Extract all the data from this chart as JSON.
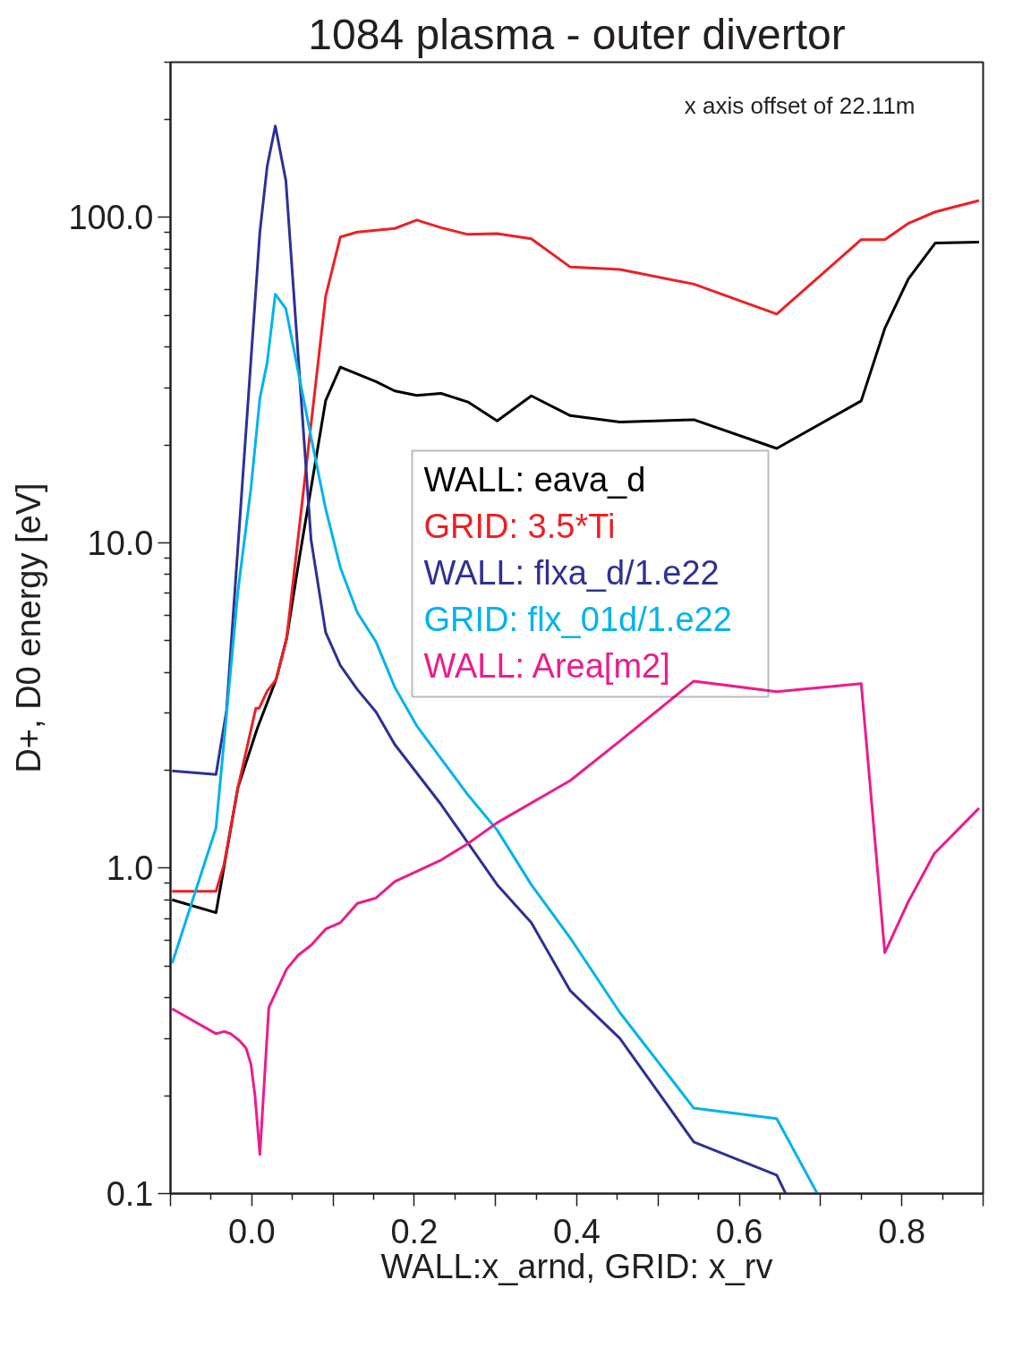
{
  "chart_data": {
    "type": "line",
    "title": "1084 plasma - outer divertor",
    "xlabel": "WALL:x_arnd, GRID: x_rv",
    "ylabel": "D+, D0 energy [eV]",
    "annotations": [
      "x axis offset of 22.11m"
    ],
    "log": true,
    "grid": false,
    "legend": "center",
    "marker": "none",
    "line_style": "solid",
    "xlim": [
      -0.1,
      0.9
    ],
    "ylim": [
      0.1,
      300
    ],
    "xticks": [
      {
        "value": -0.1,
        "label": null
      },
      {
        "value": 0.0,
        "label": "0.0"
      },
      {
        "value": 0.1,
        "label": null
      },
      {
        "value": 0.2,
        "label": "0.2"
      },
      {
        "value": 0.3,
        "label": null
      },
      {
        "value": 0.4,
        "label": "0.4"
      },
      {
        "value": 0.5,
        "label": null
      },
      {
        "value": 0.6,
        "label": "0.6"
      },
      {
        "value": 0.7,
        "label": null
      },
      {
        "value": 0.8,
        "label": "0.8"
      },
      {
        "value": 0.9,
        "label": null
      }
    ],
    "yticks": [
      {
        "value": 0.1,
        "label": "0.1"
      },
      {
        "value": 1,
        "label": "1.0"
      },
      {
        "value": 10,
        "label": "10.0"
      },
      {
        "value": 100,
        "label": "100.0"
      }
    ],
    "series": [
      {
        "name": "WALL: eava_d",
        "color": "#000000",
        "x": [
          -0.098,
          -0.044,
          -0.017,
          0.007,
          0.03,
          0.043,
          0.059,
          0.091,
          0.109,
          0.13,
          0.153,
          0.176,
          0.203,
          0.233,
          0.266,
          0.302,
          0.344,
          0.392,
          0.453,
          0.544,
          0.646,
          0.75,
          0.779,
          0.808,
          0.841,
          0.895
        ],
        "values": [
          0.8,
          0.73,
          1.77,
          2.7,
          3.8,
          5.1,
          9.1,
          27.4,
          34.7,
          33,
          31.3,
          29.3,
          28.4,
          28.8,
          27.1,
          23.7,
          28.3,
          24.6,
          23.5,
          23.9,
          19.5,
          27.3,
          45.6,
          64.7,
          83.4,
          84.0
        ]
      },
      {
        "name": "GRID: 3.5*Ti",
        "color": "#ed2024",
        "x": [
          -0.098,
          -0.044,
          -0.034,
          -0.017,
          0.005,
          0.009,
          0.019,
          0.03,
          0.043,
          0.091,
          0.109,
          0.13,
          0.153,
          0.176,
          0.203,
          0.233,
          0.266,
          0.302,
          0.344,
          0.392,
          0.453,
          0.544,
          0.646,
          0.75,
          0.779,
          0.808,
          0.841,
          0.895
        ],
        "values": [
          0.85,
          0.85,
          1.03,
          1.77,
          3.1,
          3.1,
          3.5,
          3.8,
          5.1,
          57.4,
          87.1,
          90.2,
          91.4,
          92.5,
          98.2,
          93.0,
          88.7,
          89.2,
          86.0,
          70.4,
          69.2,
          62.4,
          50.5,
          85.5,
          85.5,
          95.9,
          104,
          112.8
        ]
      },
      {
        "name": "WALL: flxa_d/1.e22",
        "color": "#2e3192",
        "x": [
          -0.098,
          -0.044,
          -0.031,
          0.01,
          0.019,
          0.029,
          0.042,
          0.073,
          0.091,
          0.109,
          0.13,
          0.153,
          0.176,
          0.233,
          0.302,
          0.344,
          0.392,
          0.453,
          0.544,
          0.646,
          0.657
        ],
        "values": [
          1.99,
          1.94,
          3.06,
          90.2,
          143.6,
          191,
          129.7,
          10.2,
          5.3,
          4.2,
          3.54,
          3.02,
          2.4,
          1.57,
          0.89,
          0.68,
          0.42,
          0.3,
          0.144,
          0.114,
          0.1
        ]
      },
      {
        "name": "GRID: flx_01d/1.e22",
        "color": "#00b3ec",
        "x": [
          -0.098,
          -0.044,
          -0.017,
          -0.001,
          0.01,
          0.019,
          0.029,
          0.042,
          0.073,
          0.091,
          0.109,
          0.13,
          0.153,
          0.176,
          0.203,
          0.266,
          0.302,
          0.344,
          0.392,
          0.453,
          0.544,
          0.646,
          0.696
        ],
        "values": [
          0.51,
          1.33,
          7.1,
          14.7,
          27.8,
          35.8,
          58.1,
          52.4,
          21.1,
          12.7,
          8.4,
          6.1,
          4.96,
          3.6,
          2.74,
          1.68,
          1.31,
          0.89,
          0.61,
          0.36,
          0.183,
          0.17,
          0.1
        ]
      },
      {
        "name": "WALL: Area[m2]",
        "color": "#ec1c8c",
        "x": [
          -0.098,
          -0.044,
          -0.034,
          -0.026,
          -0.015,
          -0.007,
          -0.001,
          0.004,
          0.01,
          0.021,
          0.043,
          0.057,
          0.073,
          0.091,
          0.109,
          0.13,
          0.153,
          0.176,
          0.233,
          0.266,
          0.302,
          0.392,
          0.453,
          0.544,
          0.646,
          0.75,
          0.779,
          0.808,
          0.84,
          0.895
        ],
        "values": [
          0.37,
          0.31,
          0.315,
          0.31,
          0.295,
          0.28,
          0.25,
          0.2,
          0.132,
          0.373,
          0.49,
          0.54,
          0.58,
          0.65,
          0.68,
          0.78,
          0.81,
          0.91,
          1.06,
          1.19,
          1.38,
          1.86,
          2.46,
          3.76,
          3.49,
          3.69,
          0.55,
          0.79,
          1.11,
          1.53
        ]
      }
    ]
  }
}
